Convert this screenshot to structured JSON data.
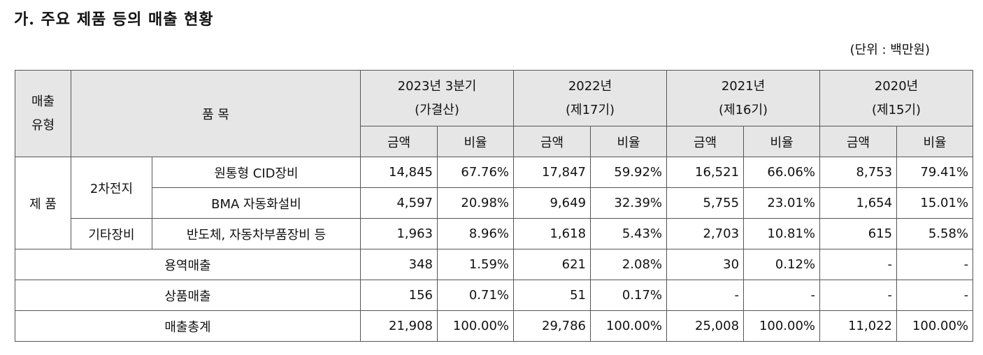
{
  "title": "가. 주요 제품 등의 매출 현황",
  "unit": "(단위 : 백만원)",
  "header": {
    "sales_type": [
      "매출",
      "유형"
    ],
    "item": "품 목",
    "periods": [
      {
        "year": "2023년 3분기",
        "note": "(가결산)"
      },
      {
        "year": "2022년",
        "note": "(제17기)"
      },
      {
        "year": "2021년",
        "note": "(제16기)"
      },
      {
        "year": "2020년",
        "note": "(제15기)"
      }
    ],
    "amount": "금액",
    "ratio": "비율"
  },
  "product_label": "제 품",
  "groups": {
    "battery": "2차전지",
    "other": "기타장비"
  },
  "rows": [
    {
      "name": "원통형 CID장비",
      "values": [
        "14,845",
        "67.76%",
        "17,847",
        "59.92%",
        "16,521",
        "66.06%",
        "8,753",
        "79.41%"
      ]
    },
    {
      "name": "BMA 자동화설비",
      "values": [
        "4,597",
        "20.98%",
        "9,649",
        "32.39%",
        "5,755",
        "23.01%",
        "1,654",
        "15.01%"
      ]
    },
    {
      "name": "반도체, 자동차부품장비 등",
      "values": [
        "1,963",
        "8.96%",
        "1,618",
        "5.43%",
        "2,703",
        "10.81%",
        "615",
        "5.58%"
      ]
    },
    {
      "name": "용역매출",
      "values": [
        "348",
        "1.59%",
        "621",
        "2.08%",
        "30",
        "0.12%",
        "-",
        "-"
      ]
    },
    {
      "name": "상품매출",
      "values": [
        "156",
        "0.71%",
        "51",
        "0.17%",
        "-",
        "-",
        "-",
        "-"
      ]
    },
    {
      "name": "매출총계",
      "values": [
        "21,908",
        "100.00%",
        "29,786",
        "100.00%",
        "25,008",
        "100.00%",
        "11,022",
        "100.00%"
      ]
    }
  ]
}
